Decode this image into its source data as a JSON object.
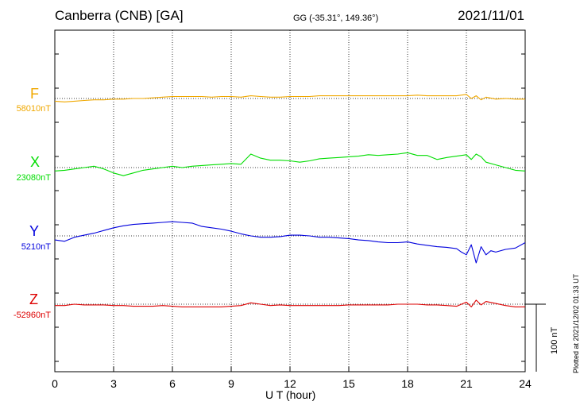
{
  "header": {
    "title": "Canberra (CNB)  [GA]",
    "coords": "GG (-35.31°, 149.36°)",
    "date": "2021/11/01"
  },
  "plotted_note": "Plotted at 2021/12/02 01:33 UT",
  "scale_label": "100 nT",
  "chart_data": {
    "type": "line",
    "title": "Canberra (CNB)  [GA]",
    "xlabel": "U T (hour)",
    "ylabel": "",
    "xlim": [
      0,
      24
    ],
    "xticks": [
      0,
      3,
      6,
      9,
      12,
      15,
      18,
      21,
      24
    ],
    "grid": true,
    "scale_bar_nT": 100,
    "series": [
      {
        "name": "F",
        "baseline_label": "58010nT",
        "baseline_nT": 58010,
        "color": "#f0a800",
        "x": [
          0,
          0.5,
          1,
          1.5,
          2,
          2.5,
          3,
          3.5,
          4,
          4.5,
          5,
          5.5,
          6,
          6.5,
          7,
          7.5,
          8,
          8.5,
          9,
          9.5,
          10,
          10.5,
          11,
          11.5,
          12,
          12.5,
          13,
          13.5,
          14,
          14.5,
          15,
          15.5,
          16,
          16.5,
          17,
          17.5,
          18,
          18.5,
          19,
          19.5,
          20,
          20.5,
          21,
          21.25,
          21.5,
          21.75,
          22,
          22.5,
          23,
          23.5,
          24
        ],
        "y": [
          58006,
          58005,
          58006,
          58007,
          58008,
          58008,
          58009,
          58009,
          58010,
          58010,
          58011,
          58012,
          58013,
          58013,
          58013,
          58013,
          58012,
          58013,
          58013,
          58012,
          58014,
          58013,
          58012,
          58012,
          58013,
          58013,
          58013,
          58014,
          58014,
          58014,
          58014,
          58014,
          58014,
          58014,
          58014,
          58014,
          58014,
          58015,
          58014,
          58014,
          58014,
          58014,
          58016,
          58010,
          58014,
          58008,
          58012,
          58009,
          58010,
          58009,
          58009
        ]
      },
      {
        "name": "X",
        "baseline_label": "23080nT",
        "baseline_nT": 23080,
        "color": "#00dd00",
        "x": [
          0,
          0.5,
          1,
          1.5,
          2,
          2.5,
          3,
          3.5,
          4,
          4.5,
          5,
          5.5,
          6,
          6.5,
          7,
          7.5,
          8,
          8.5,
          9,
          9.5,
          10,
          10.5,
          11,
          11.5,
          12,
          12.5,
          13,
          13.5,
          14,
          14.5,
          15,
          15.5,
          16,
          16.5,
          17,
          17.5,
          18,
          18.5,
          19,
          19.5,
          20,
          20.5,
          21,
          21.25,
          21.5,
          21.75,
          22,
          22.5,
          23,
          23.5,
          24
        ],
        "y": [
          23075,
          23076,
          23078,
          23080,
          23082,
          23078,
          23072,
          23068,
          23072,
          23076,
          23078,
          23080,
          23082,
          23080,
          23082,
          23083,
          23084,
          23085,
          23086,
          23085,
          23100,
          23094,
          23091,
          23091,
          23090,
          23088,
          23090,
          23093,
          23094,
          23095,
          23096,
          23097,
          23099,
          23098,
          23099,
          23100,
          23102,
          23098,
          23098,
          23092,
          23095,
          23097,
          23099,
          23092,
          23100,
          23096,
          23088,
          23084,
          23080,
          23076,
          23075
        ]
      },
      {
        "name": "Y",
        "baseline_label": "5210nT",
        "baseline_nT": 5210,
        "color": "#0000dd",
        "x": [
          0,
          0.5,
          1,
          1.5,
          2,
          2.5,
          3,
          3.5,
          4,
          4.5,
          5,
          5.5,
          6,
          6.5,
          7,
          7.5,
          8,
          8.5,
          9,
          9.5,
          10,
          10.5,
          11,
          11.5,
          12,
          12.5,
          13,
          13.5,
          14,
          14.5,
          15,
          15.5,
          16,
          16.5,
          17,
          17.5,
          18,
          18.5,
          19,
          19.5,
          20,
          20.5,
          20.75,
          21,
          21.25,
          21.5,
          21.75,
          22,
          22.25,
          22.5,
          23,
          23.5,
          24
        ],
        "y": [
          5204,
          5202,
          5208,
          5211,
          5214,
          5218,
          5222,
          5225,
          5227,
          5228,
          5229,
          5230,
          5231,
          5230,
          5229,
          5224,
          5222,
          5220,
          5217,
          5213,
          5210,
          5208,
          5208,
          5209,
          5211,
          5211,
          5210,
          5208,
          5208,
          5207,
          5206,
          5204,
          5203,
          5201,
          5200,
          5200,
          5201,
          5198,
          5196,
          5194,
          5193,
          5191,
          5186,
          5182,
          5197,
          5170,
          5194,
          5182,
          5188,
          5186,
          5190,
          5192,
          5200
        ]
      },
      {
        "name": "Z",
        "baseline_label": "-52960nT",
        "baseline_nT": -52960,
        "color": "#dd0000",
        "x": [
          0,
          0.5,
          1,
          1.5,
          2,
          2.5,
          3,
          3.5,
          4,
          4.5,
          5,
          5.5,
          6,
          6.5,
          7,
          7.5,
          8,
          8.5,
          9,
          9.5,
          10,
          10.5,
          11,
          11.5,
          12,
          12.5,
          13,
          13.5,
          14,
          14.5,
          15,
          15.5,
          16,
          16.5,
          17,
          17.5,
          18,
          18.5,
          19,
          19.5,
          20,
          20.5,
          21,
          21.25,
          21.5,
          21.75,
          22,
          22.5,
          23,
          23.5,
          24
        ],
        "y": [
          -52962,
          -52962,
          -52960,
          -52961,
          -52961,
          -52961,
          -52962,
          -52962,
          -52963,
          -52963,
          -52963,
          -52962,
          -52963,
          -52964,
          -52964,
          -52964,
          -52964,
          -52964,
          -52963,
          -52962,
          -52958,
          -52960,
          -52962,
          -52961,
          -52962,
          -52962,
          -52962,
          -52962,
          -52962,
          -52962,
          -52961,
          -52961,
          -52961,
          -52961,
          -52961,
          -52960,
          -52960,
          -52960,
          -52961,
          -52961,
          -52962,
          -52963,
          -52957,
          -52964,
          -52954,
          -52961,
          -52956,
          -52959,
          -52962,
          -52964,
          -52964
        ]
      }
    ]
  }
}
